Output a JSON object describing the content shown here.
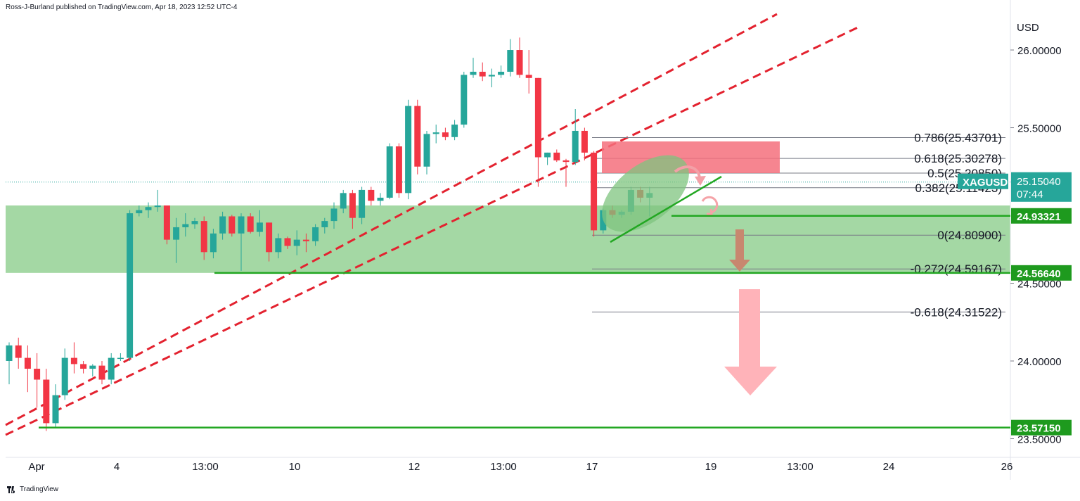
{
  "header": {
    "publisher": "Ross-J-Burland published on TradingView.com, Apr 18, 2023 12:52 UTC-4"
  },
  "footer": {
    "brand": "TradingView"
  },
  "colors": {
    "up": "#26a69a",
    "down": "#f23645",
    "zone": "#9fd69f",
    "support": "#22a722",
    "resistance_box": "#f5707c",
    "trendline": "#e3222f",
    "arrow_big": "#ffb3b9",
    "arrow_small": "#c8876f",
    "ellipse": "#7fc47f",
    "fib": "#787b86"
  },
  "chart_data": {
    "type": "candlestick",
    "symbol": "XAGUSD",
    "currency": "USD",
    "ylim": [
      23.38,
      26.24
    ],
    "y_ticks": [
      "26.00000",
      "25.50000",
      "24.50000",
      "24.00000",
      "23.50000"
    ],
    "x_ticks": [
      "Apr",
      "4",
      "13:00",
      "10",
      "12",
      "13:00",
      "17",
      "19",
      "13:00",
      "24",
      "26"
    ],
    "candles": [
      {
        "o": 24.0,
        "h": 24.12,
        "l": 23.85,
        "c": 24.1
      },
      {
        "o": 24.1,
        "h": 24.15,
        "l": 23.95,
        "c": 24.02
      },
      {
        "o": 24.02,
        "h": 24.1,
        "l": 23.8,
        "c": 23.95
      },
      {
        "o": 23.95,
        "h": 24.05,
        "l": 23.7,
        "c": 23.88
      },
      {
        "o": 23.88,
        "h": 23.95,
        "l": 23.55,
        "c": 23.6
      },
      {
        "o": 23.6,
        "h": 23.85,
        "l": 23.57,
        "c": 23.78
      },
      {
        "o": 23.78,
        "h": 24.08,
        "l": 23.75,
        "c": 24.02
      },
      {
        "o": 24.02,
        "h": 24.12,
        "l": 23.92,
        "c": 23.98
      },
      {
        "o": 23.98,
        "h": 24.0,
        "l": 23.92,
        "c": 23.95
      },
      {
        "o": 23.95,
        "h": 23.98,
        "l": 23.9,
        "c": 23.97
      },
      {
        "o": 23.97,
        "h": 24.0,
        "l": 23.85,
        "c": 23.88
      },
      {
        "o": 23.88,
        "h": 24.05,
        "l": 23.85,
        "c": 24.02
      },
      {
        "o": 24.02,
        "h": 24.05,
        "l": 24.0,
        "c": 24.02
      },
      {
        "o": 24.02,
        "h": 24.97,
        "l": 24.0,
        "c": 24.95
      },
      {
        "o": 24.95,
        "h": 25.0,
        "l": 24.93,
        "c": 24.97
      },
      {
        "o": 24.97,
        "h": 25.02,
        "l": 24.92,
        "c": 24.99
      },
      {
        "o": 24.99,
        "h": 25.1,
        "l": 24.96,
        "c": 25.0
      },
      {
        "o": 25.0,
        "h": 25.0,
        "l": 24.75,
        "c": 24.78
      },
      {
        "o": 24.78,
        "h": 24.92,
        "l": 24.63,
        "c": 24.86
      },
      {
        "o": 24.86,
        "h": 24.95,
        "l": 24.8,
        "c": 24.88
      },
      {
        "o": 24.88,
        "h": 24.92,
        "l": 24.85,
        "c": 24.9
      },
      {
        "o": 24.9,
        "h": 24.93,
        "l": 24.65,
        "c": 24.7
      },
      {
        "o": 24.7,
        "h": 24.85,
        "l": 24.66,
        "c": 24.82
      },
      {
        "o": 24.82,
        "h": 24.96,
        "l": 24.78,
        "c": 24.93
      },
      {
        "o": 24.93,
        "h": 24.94,
        "l": 24.8,
        "c": 24.82
      },
      {
        "o": 24.82,
        "h": 24.95,
        "l": 24.58,
        "c": 24.93
      },
      {
        "o": 24.93,
        "h": 24.95,
        "l": 24.82,
        "c": 24.83
      },
      {
        "o": 24.83,
        "h": 24.97,
        "l": 24.8,
        "c": 24.89
      },
      {
        "o": 24.89,
        "h": 24.89,
        "l": 24.64,
        "c": 24.7
      },
      {
        "o": 24.7,
        "h": 24.82,
        "l": 24.66,
        "c": 24.79
      },
      {
        "o": 24.79,
        "h": 24.8,
        "l": 24.72,
        "c": 24.74
      },
      {
        "o": 24.74,
        "h": 24.84,
        "l": 24.68,
        "c": 24.78
      },
      {
        "o": 24.78,
        "h": 24.82,
        "l": 24.7,
        "c": 24.77
      },
      {
        "o": 24.77,
        "h": 24.88,
        "l": 24.74,
        "c": 24.86
      },
      {
        "o": 24.86,
        "h": 24.92,
        "l": 24.82,
        "c": 24.9
      },
      {
        "o": 24.9,
        "h": 25.02,
        "l": 24.85,
        "c": 24.98
      },
      {
        "o": 24.98,
        "h": 25.1,
        "l": 24.95,
        "c": 25.08
      },
      {
        "o": 25.08,
        "h": 25.1,
        "l": 24.85,
        "c": 24.92
      },
      {
        "o": 24.92,
        "h": 25.12,
        "l": 24.88,
        "c": 25.1
      },
      {
        "o": 25.1,
        "h": 25.12,
        "l": 25.0,
        "c": 25.03
      },
      {
        "o": 25.03,
        "h": 25.08,
        "l": 25.0,
        "c": 25.05
      },
      {
        "o": 25.05,
        "h": 25.4,
        "l": 25.04,
        "c": 25.38
      },
      {
        "o": 25.38,
        "h": 25.4,
        "l": 25.05,
        "c": 25.08
      },
      {
        "o": 25.08,
        "h": 25.68,
        "l": 25.04,
        "c": 25.64
      },
      {
        "o": 25.64,
        "h": 25.68,
        "l": 25.2,
        "c": 25.25
      },
      {
        "o": 25.25,
        "h": 25.48,
        "l": 25.2,
        "c": 25.46
      },
      {
        "o": 25.46,
        "h": 25.52,
        "l": 25.4,
        "c": 25.47
      },
      {
        "o": 25.47,
        "h": 25.5,
        "l": 25.42,
        "c": 25.44
      },
      {
        "o": 25.44,
        "h": 25.55,
        "l": 25.42,
        "c": 25.52
      },
      {
        "o": 25.52,
        "h": 25.86,
        "l": 25.5,
        "c": 25.84
      },
      {
        "o": 25.84,
        "h": 25.95,
        "l": 25.82,
        "c": 25.86
      },
      {
        "o": 25.86,
        "h": 25.92,
        "l": 25.8,
        "c": 25.83
      },
      {
        "o": 25.83,
        "h": 25.88,
        "l": 25.76,
        "c": 25.84
      },
      {
        "o": 25.84,
        "h": 25.9,
        "l": 25.82,
        "c": 25.86
      },
      {
        "o": 25.86,
        "h": 26.07,
        "l": 25.83,
        "c": 26.0
      },
      {
        "o": 26.0,
        "h": 26.08,
        "l": 25.82,
        "c": 25.84
      },
      {
        "o": 25.84,
        "h": 26.0,
        "l": 25.72,
        "c": 25.82
      },
      {
        "o": 25.82,
        "h": 25.82,
        "l": 25.12,
        "c": 25.31
      },
      {
        "o": 25.31,
        "h": 25.34,
        "l": 25.26,
        "c": 25.34
      },
      {
        "o": 25.34,
        "h": 25.36,
        "l": 25.28,
        "c": 25.29
      },
      {
        "o": 25.29,
        "h": 25.3,
        "l": 25.12,
        "c": 25.28
      },
      {
        "o": 25.28,
        "h": 25.62,
        "l": 25.26,
        "c": 25.48
      },
      {
        "o": 25.48,
        "h": 25.5,
        "l": 25.29,
        "c": 25.34
      },
      {
        "o": 25.34,
        "h": 25.35,
        "l": 24.8,
        "c": 24.84
      },
      {
        "o": 24.84,
        "h": 24.98,
        "l": 24.82,
        "c": 24.97
      },
      {
        "o": 24.97,
        "h": 25.0,
        "l": 24.92,
        "c": 24.94
      },
      {
        "o": 24.94,
        "h": 24.97,
        "l": 24.92,
        "c": 24.96
      },
      {
        "o": 24.96,
        "h": 25.12,
        "l": 24.94,
        "c": 25.1
      },
      {
        "o": 25.1,
        "h": 25.12,
        "l": 25.02,
        "c": 25.05
      },
      {
        "o": 25.05,
        "h": 25.12,
        "l": 24.93,
        "c": 25.08
      }
    ],
    "fib_levels": [
      {
        "label": "0.786(25.43701)",
        "value": 25.43701
      },
      {
        "label": "0.618(25.30278)",
        "value": 25.30278
      },
      {
        "label": "0.5(25.20850)",
        "value": 25.2085
      },
      {
        "label": "0.382(25.11423)",
        "value": 25.11423
      },
      {
        "label": "0(24.80900)",
        "value": 24.809
      },
      {
        "label": "-0.272(24.59167)",
        "value": 24.59167
      },
      {
        "label": "-0.618(24.31522)",
        "value": 24.31522
      }
    ],
    "price_labels": [
      {
        "label": "25.15040",
        "sub": "07:44",
        "kind": "current"
      },
      {
        "label": "24.93321",
        "kind": "support"
      },
      {
        "label": "24.56640",
        "kind": "support"
      },
      {
        "label": "23.57150",
        "kind": "support"
      }
    ],
    "support_levels": [
      24.93321,
      24.5664,
      23.5715
    ],
    "last_price": 25.1504,
    "zone": {
      "from": 24.5664,
      "to": 25.0
    }
  }
}
